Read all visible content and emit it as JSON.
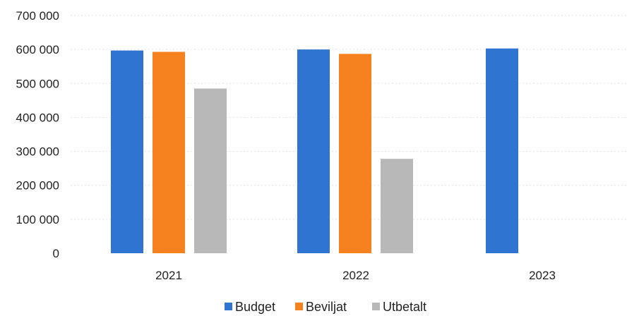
{
  "chart_data": {
    "type": "bar",
    "categories": [
      "2021",
      "2022",
      "2023"
    ],
    "series": [
      {
        "name": "Budget",
        "values": [
          597000,
          600000,
          603000
        ],
        "color": "#2f74d0"
      },
      {
        "name": "Beviljat",
        "values": [
          593000,
          587000,
          null
        ],
        "color": "#f5821f"
      },
      {
        "name": "Utbetalt",
        "values": [
          485000,
          278000,
          null
        ],
        "color": "#b8b8b8"
      }
    ],
    "ylim": [
      0,
      700000
    ],
    "yticks": [
      0,
      100000,
      200000,
      300000,
      400000,
      500000,
      600000,
      700000
    ],
    "ytick_labels": [
      "0",
      "100 000",
      "200 000",
      "300 000",
      "400 000",
      "500 000",
      "600 000",
      "700 000"
    ],
    "grid": true,
    "legend_position": "bottom"
  }
}
